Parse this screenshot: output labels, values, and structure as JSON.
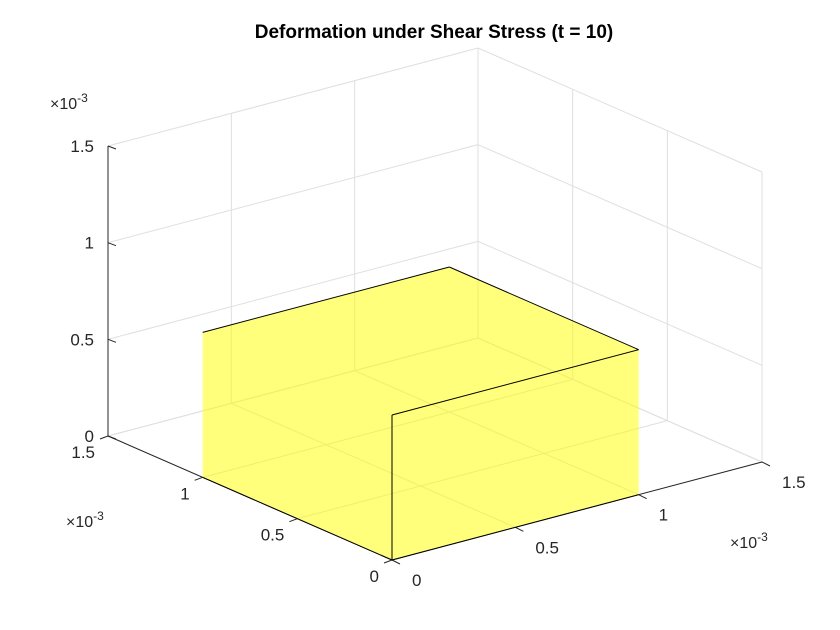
{
  "chart_data": {
    "type": "surface3d",
    "title": "Deformation under Shear Stress (t = 10)",
    "xlabel": "",
    "ylabel": "",
    "zlabel": "",
    "xlim": [
      0,
      0.0015
    ],
    "ylim": [
      0,
      0.0015
    ],
    "zlim": [
      0,
      0.0015
    ],
    "x_ticks": [
      "0",
      "0.5",
      "1",
      "1.5"
    ],
    "y_ticks": [
      "0",
      "0.5",
      "1",
      "1.5"
    ],
    "z_ticks": [
      "0",
      "0.5",
      "1",
      "1.5"
    ],
    "x_exponent": "-3",
    "y_exponent": "-3",
    "z_exponent": "-3",
    "grid": true,
    "face_color": "#ffff00",
    "face_alpha": 0.55,
    "box": {
      "x": [
        0,
        0.001
      ],
      "y": [
        0,
        0.001
      ],
      "z": [
        0,
        0.00075
      ]
    }
  }
}
